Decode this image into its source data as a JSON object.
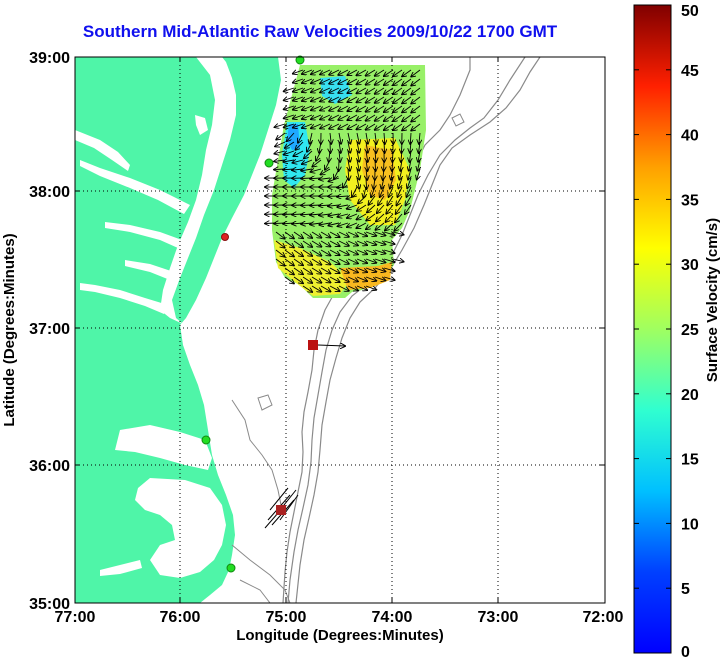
{
  "title": "Southern Mid-Atlantic Raw Velocities 2009/10/22 1700 GMT",
  "x_axis": {
    "label": "Longitude (Degrees:Minutes)",
    "ticks": [
      "77:00",
      "76:00",
      "75:00",
      "74:00",
      "73:00",
      "72:00"
    ],
    "values": [
      -77,
      -76,
      -75,
      -74,
      -73,
      -72
    ]
  },
  "y_axis": {
    "label": "Latitude (Degrees:Minutes)",
    "ticks": [
      "39:00",
      "38:00",
      "37:00",
      "36:00",
      "35:00"
    ],
    "values": [
      39,
      38,
      37,
      36,
      35
    ]
  },
  "colorbar": {
    "label": "Surface Velocity (cm/s)",
    "ticks": [
      "50",
      "45",
      "40",
      "35",
      "30",
      "25",
      "20",
      "15",
      "10",
      "5",
      "0"
    ],
    "min": 0,
    "max": 50
  },
  "colors": {
    "land": "#4ff5a8",
    "water": "#ffffff",
    "title": "#1010ee",
    "bathymetry": "#8a8a8a",
    "station_active": "#22dd22",
    "station_inactive": "#cc1111",
    "buoy": "#bb1111"
  },
  "icons": {
    "station": "green-circle-icon",
    "buoy": "red-square-icon"
  }
}
